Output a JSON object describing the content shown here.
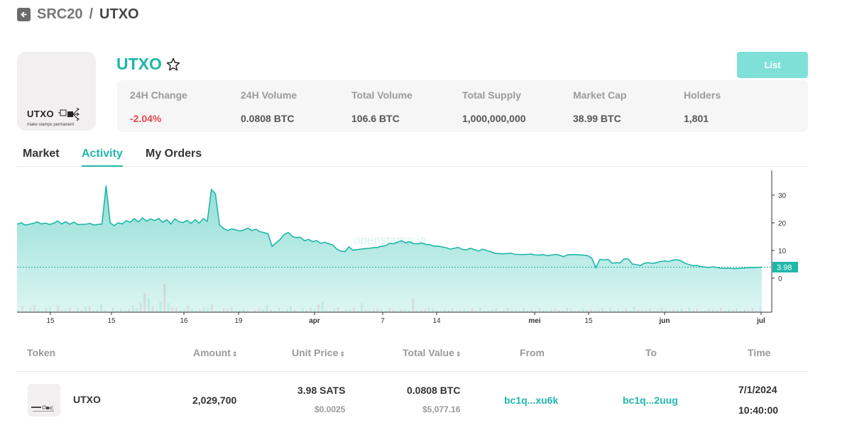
{
  "breadcrumb": {
    "parent": "SRC20",
    "separator": "/",
    "current": "UTXO"
  },
  "logo": {
    "word": "UTXO",
    "tagline": "make stamps permanent"
  },
  "token": {
    "name": "UTXO"
  },
  "list_button": "List",
  "stats": [
    {
      "label": "24H Change",
      "value": "-2.04%",
      "negative": true
    },
    {
      "label": "24H Volume",
      "value": "0.0808 BTC"
    },
    {
      "label": "Total Volume",
      "value": "106.6 BTC"
    },
    {
      "label": "Total Supply",
      "value": "1,000,000,000"
    },
    {
      "label": "Market Cap",
      "value": "38.99 BTC"
    },
    {
      "label": "Holders",
      "value": "1,801"
    }
  ],
  "tabs": [
    {
      "label": "Market",
      "active": false
    },
    {
      "label": "Activity",
      "active": true
    },
    {
      "label": "My Orders",
      "active": false
    }
  ],
  "chart_data": {
    "type": "area",
    "watermark": "openstamp.io",
    "x_ticks": [
      "15",
      "15",
      "16",
      "19",
      "apr",
      "7",
      "14",
      "mei",
      "15",
      "jun",
      "jul"
    ],
    "y_ticks": [
      30,
      20,
      10,
      0
    ],
    "last_price_label": "3.98",
    "last_price": 3.98,
    "price_series": [
      19.5,
      20.0,
      19.2,
      19.5,
      19.8,
      20.3,
      19.6,
      19.9,
      19.4,
      19.8,
      20.7,
      19.6,
      20.4,
      19.5,
      20.2,
      19.4,
      19.4,
      19.5,
      19.8,
      19.2,
      19.4,
      19.6,
      33.5,
      20.0,
      19.0,
      20.0,
      19.6,
      20.8,
      20.2,
      21.5,
      20.3,
      21.8,
      20.6,
      21.4,
      20.8,
      21.6,
      20.2,
      21.1,
      19.6,
      21.4,
      20.4,
      20.1,
      20.9,
      19.8,
      21.1,
      19.9,
      21.5,
      20.5,
      32.0,
      30.5,
      19.2,
      18.0,
      17.2,
      17.8,
      17.5,
      17.0,
      17.4,
      18.1,
      17.2,
      17.7,
      16.8,
      16.5,
      16.0,
      11.5,
      12.8,
      14.0,
      15.8,
      16.5,
      15.1,
      14.6,
      14.8,
      13.5,
      14.0,
      13.2,
      13.6,
      12.6,
      13.0,
      12.4,
      12.0,
      10.5,
      9.8,
      9.6,
      11.3,
      10.1,
      10.3,
      10.5,
      10.7,
      10.8,
      11.0,
      11.1,
      11.5,
      11.7,
      12.6,
      12.4,
      13.0,
      13.5,
      12.8,
      13.2,
      12.5,
      12.4,
      12.7,
      12.2,
      12.1,
      11.6,
      11.6,
      11.3,
      11.0,
      10.5,
      10.8,
      11.1,
      10.4,
      10.2,
      10.8,
      10.3,
      9.8,
      10.5,
      10.0,
      9.6,
      9.0,
      8.9,
      8.8,
      8.9,
      9.0,
      8.6,
      8.6,
      8.5,
      8.6,
      8.7,
      8.4,
      8.3,
      8.5,
      8.1,
      8.3,
      8.6,
      8.3,
      7.8,
      8.4,
      8.5,
      8.5,
      8.4,
      8.3,
      8.1,
      7.2,
      3.8,
      6.8,
      6.6,
      6.8,
      5.4,
      5.6,
      5.5,
      7.0,
      6.9,
      5.1,
      4.9,
      4.6,
      5.4,
      5.6,
      5.3,
      5.6,
      6.0,
      6.2,
      6.0,
      6.5,
      6.7,
      6.3,
      5.4,
      4.9,
      4.5,
      4.6,
      4.2,
      4.0,
      3.9,
      4.1,
      3.8,
      3.6,
      3.5,
      3.6,
      3.4,
      3.5,
      3.6,
      3.7,
      3.8,
      3.8,
      3.9,
      3.98
    ],
    "volume_series": [
      3,
      8,
      2,
      6,
      10,
      4,
      2,
      5,
      7,
      1,
      9,
      3,
      4,
      6,
      2,
      5,
      3,
      7,
      8,
      2,
      4,
      11,
      3,
      1,
      6,
      2,
      5,
      3,
      4,
      9,
      6,
      12,
      26,
      18,
      8,
      3,
      14,
      38,
      12,
      7,
      6,
      3,
      4,
      9,
      5,
      2,
      4,
      7,
      6,
      11,
      3,
      2,
      5,
      4,
      6,
      2,
      3,
      4,
      2,
      1,
      3,
      5,
      4,
      9,
      3,
      2,
      6,
      2,
      4,
      8,
      3,
      2,
      5,
      3,
      6,
      4,
      10,
      14,
      3,
      2,
      5,
      7,
      2,
      3,
      4,
      6,
      2,
      12,
      4,
      2,
      3,
      5,
      4,
      2,
      6,
      3,
      2,
      4,
      5,
      3,
      18,
      2,
      3,
      4,
      6,
      5,
      3,
      2,
      4,
      3,
      5,
      2,
      3,
      4,
      2,
      5,
      3,
      6,
      2,
      3,
      4,
      5,
      2,
      3,
      6,
      4,
      3,
      2,
      5,
      3,
      4,
      2,
      6,
      3,
      2,
      4,
      5,
      3,
      2,
      6,
      4,
      2,
      3,
      5,
      3,
      4,
      2,
      3,
      5,
      2,
      6,
      3,
      4,
      2,
      5,
      3,
      7,
      4,
      2,
      3,
      5,
      2,
      4,
      6,
      3,
      2,
      4,
      3,
      5,
      2,
      6,
      3,
      4,
      2,
      3,
      5,
      4,
      3,
      6,
      2,
      4,
      3,
      5,
      2,
      4,
      3,
      6,
      2,
      8
    ]
  },
  "table": {
    "headers": [
      {
        "label": "Token",
        "sortable": false
      },
      {
        "label": "Amount",
        "sortable": true
      },
      {
        "label": "Unit Price",
        "sortable": true
      },
      {
        "label": "Total Value",
        "sortable": true
      },
      {
        "label": "From",
        "sortable": false
      },
      {
        "label": "To",
        "sortable": false
      },
      {
        "label": "Time",
        "sortable": false
      }
    ],
    "sort_glyph": "⇕",
    "rows": [
      {
        "token": "UTXO",
        "amount": "2,029,700",
        "unit_price": "3.98 SATS",
        "unit_price_usd": "$0.0025",
        "total_value": "0.0808 BTC",
        "total_value_usd": "$5,077.16",
        "from": "bc1q...xu6k",
        "to": "bc1q...2uug",
        "date": "7/1/2024",
        "time": "10:40:00"
      }
    ]
  },
  "colors": {
    "accent": "#1fb7a9",
    "negative": "#e8474f",
    "button": "#7fe0d8"
  }
}
